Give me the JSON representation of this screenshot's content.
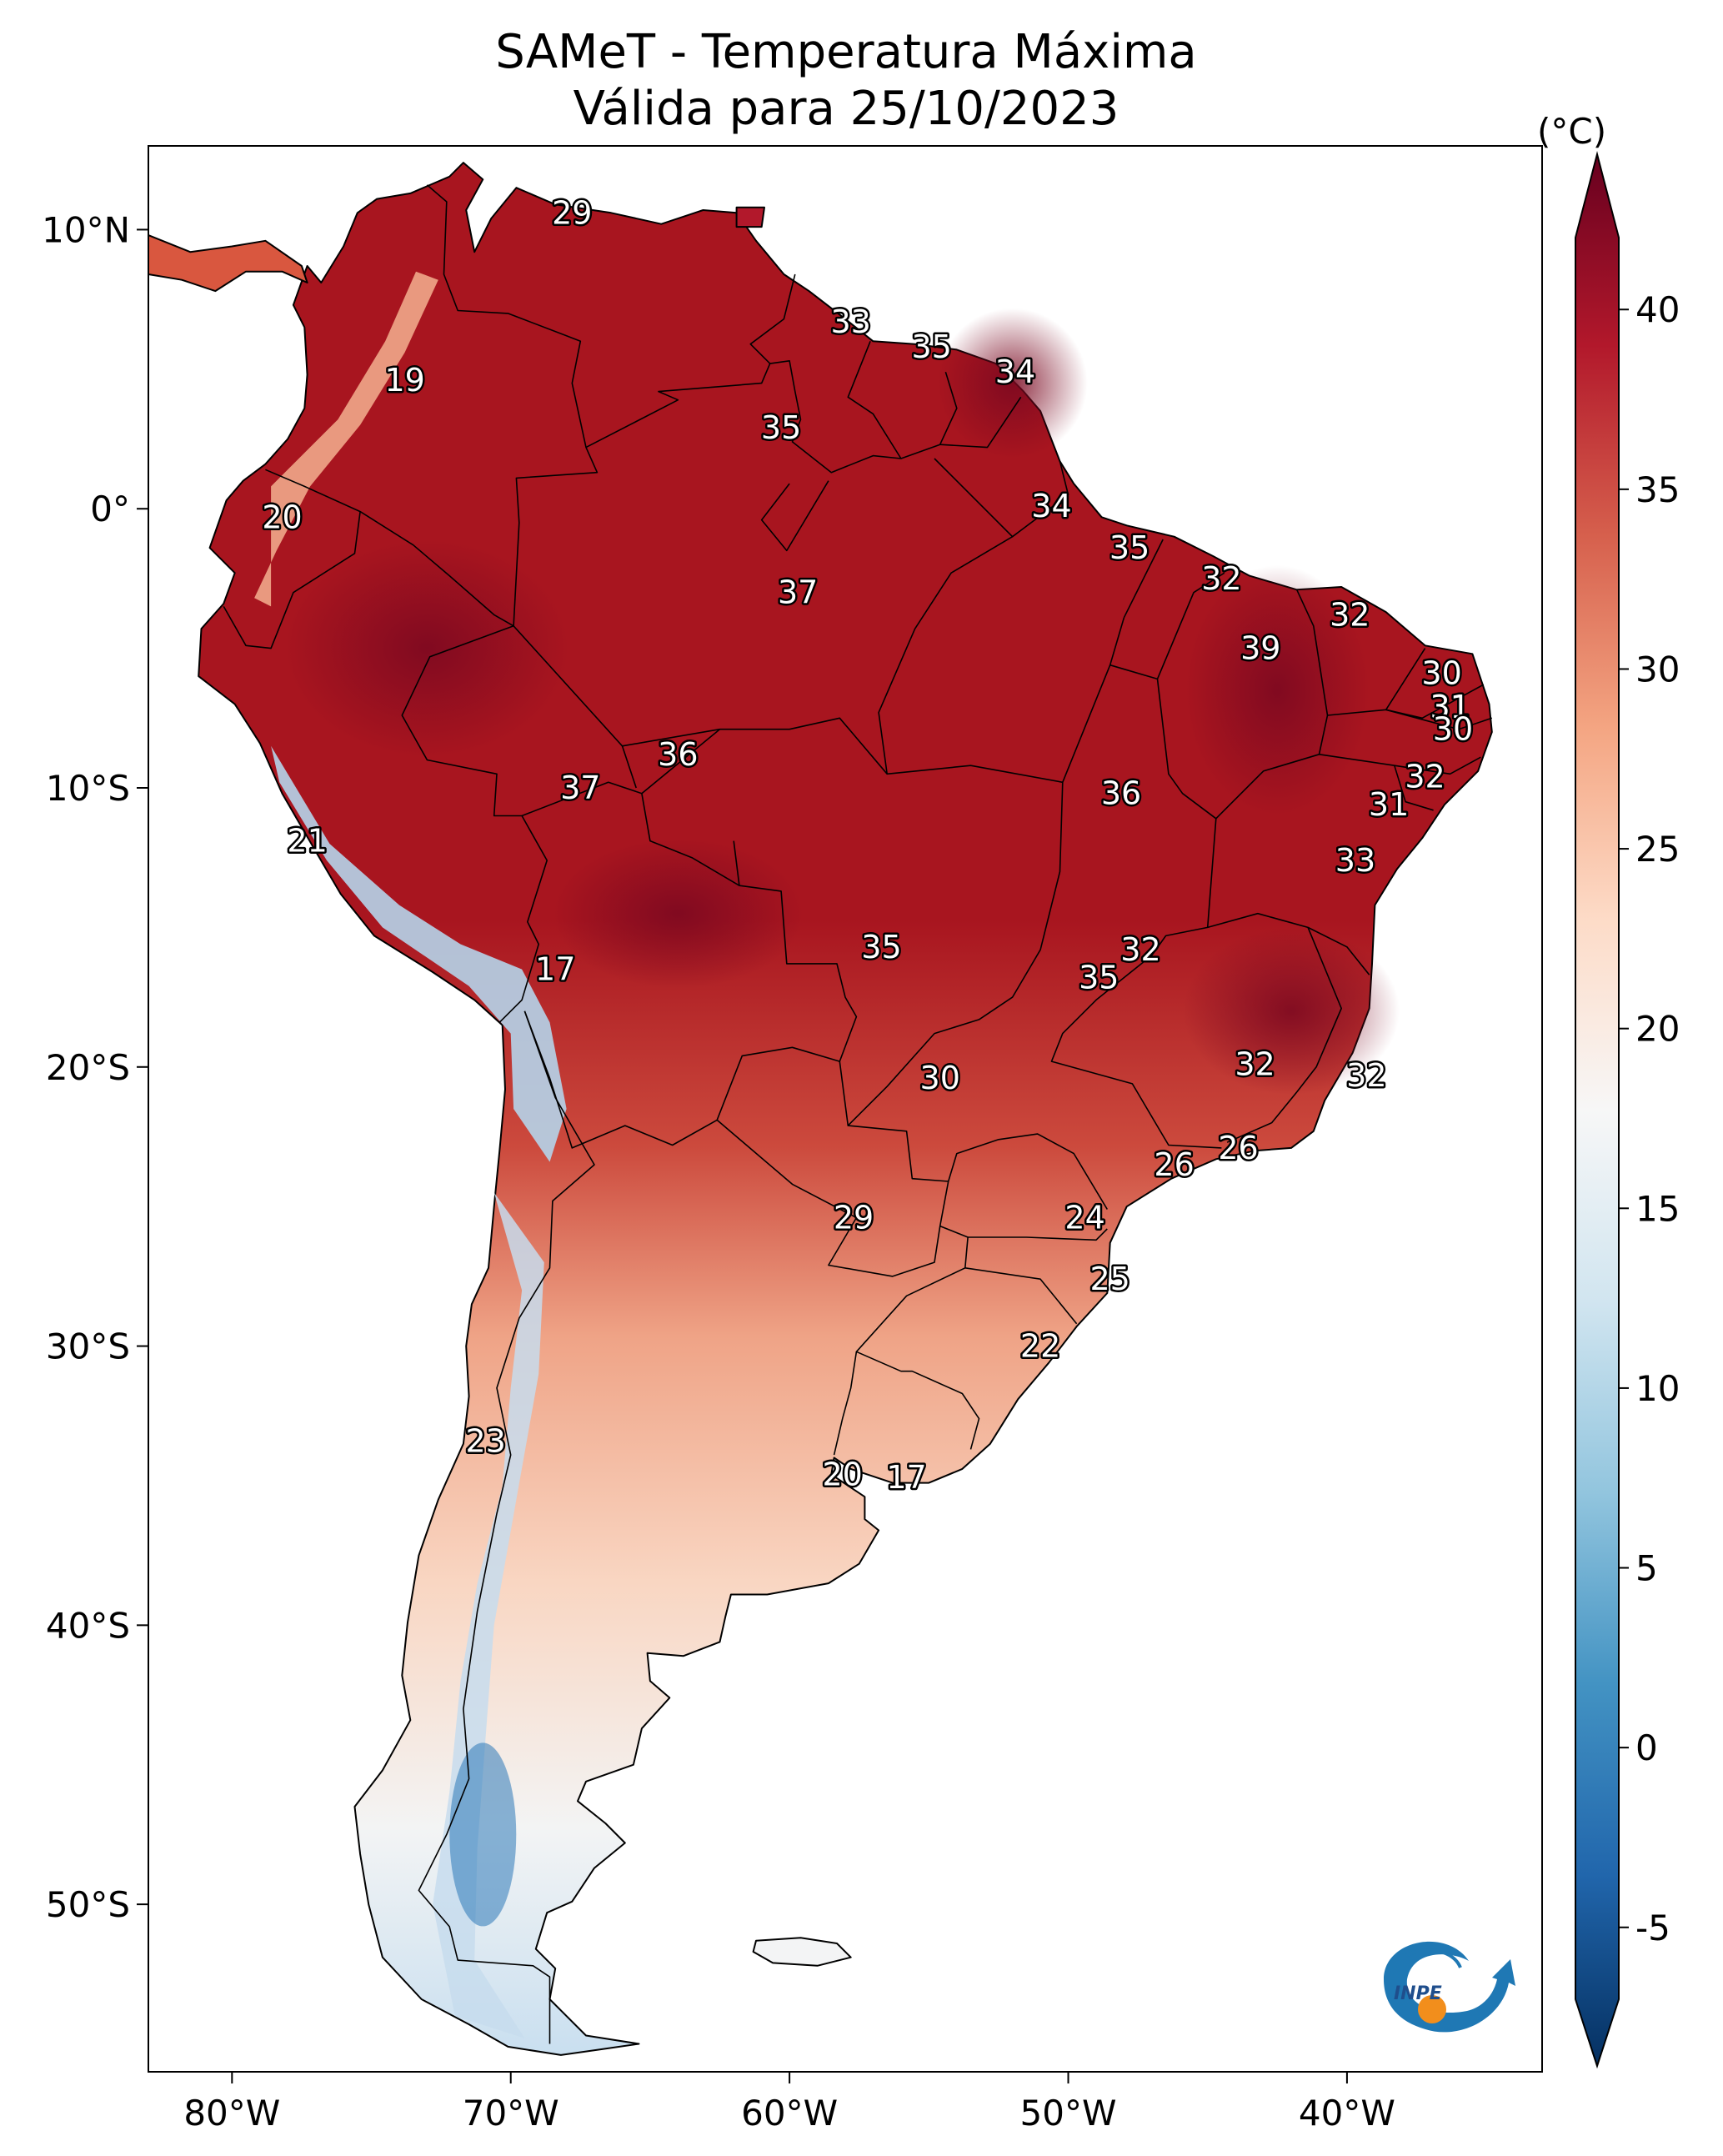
{
  "title": {
    "line1": "SAMeT - Temperatura Máxima",
    "line2": "Válida para 25/10/2023"
  },
  "axes": {
    "lon_ticks": [
      {
        "lon": -80,
        "label": "80°W"
      },
      {
        "lon": -70,
        "label": "70°W"
      },
      {
        "lon": -60,
        "label": "60°W"
      },
      {
        "lon": -50,
        "label": "50°W"
      },
      {
        "lon": -40,
        "label": "40°W"
      }
    ],
    "lat_ticks": [
      {
        "lat": 10,
        "label": "10°N"
      },
      {
        "lat": 0,
        "label": "0°"
      },
      {
        "lat": -10,
        "label": "10°S"
      },
      {
        "lat": -20,
        "label": "20°S"
      },
      {
        "lat": -30,
        "label": "30°S"
      },
      {
        "lat": -40,
        "label": "40°S"
      },
      {
        "lat": -50,
        "label": "50°S"
      }
    ],
    "lon_range": [
      -83,
      -33
    ],
    "lat_range": [
      -56,
      13
    ]
  },
  "colorbar": {
    "unit": "(°C)",
    "min": -7,
    "max": 42,
    "ticks": [
      {
        "value": 40,
        "label": "40"
      },
      {
        "value": 35,
        "label": "35"
      },
      {
        "value": 30,
        "label": "30"
      },
      {
        "value": 25,
        "label": "25"
      },
      {
        "value": 20,
        "label": "20"
      },
      {
        "value": 15,
        "label": "15"
      },
      {
        "value": 10,
        "label": "10"
      },
      {
        "value": 5,
        "label": "5"
      },
      {
        "value": 0,
        "label": "0"
      },
      {
        "value": -5,
        "label": "-5"
      }
    ],
    "colors": [
      "#053061",
      "#2166ac",
      "#4393c3",
      "#92c5de",
      "#d1e5f0",
      "#f7f7f7",
      "#fddbc7",
      "#f4a582",
      "#d6604d",
      "#b2182b",
      "#67001f"
    ]
  },
  "temperature_labels": [
    {
      "lon": -67.8,
      "lat": 10.6,
      "text": "29"
    },
    {
      "lon": -57.8,
      "lat": 6.7,
      "text": "33"
    },
    {
      "lon": -54.9,
      "lat": 5.8,
      "text": "35"
    },
    {
      "lon": -51.9,
      "lat": 4.9,
      "text": "34"
    },
    {
      "lon": -73.8,
      "lat": 4.6,
      "text": "19"
    },
    {
      "lon": -60.3,
      "lat": 2.9,
      "text": "35"
    },
    {
      "lon": -50.6,
      "lat": 0.1,
      "text": "34"
    },
    {
      "lon": -78.2,
      "lat": -0.3,
      "text": "20"
    },
    {
      "lon": -47.8,
      "lat": -1.4,
      "text": "35"
    },
    {
      "lon": -44.5,
      "lat": -2.5,
      "text": "32"
    },
    {
      "lon": -59.7,
      "lat": -3.0,
      "text": "37"
    },
    {
      "lon": -39.9,
      "lat": -3.8,
      "text": "32"
    },
    {
      "lon": -43.1,
      "lat": -5.0,
      "text": "39"
    },
    {
      "lon": -36.6,
      "lat": -5.9,
      "text": "30"
    },
    {
      "lon": -36.3,
      "lat": -7.1,
      "text": "31"
    },
    {
      "lon": -36.2,
      "lat": -7.9,
      "text": "30"
    },
    {
      "lon": -64.0,
      "lat": -8.8,
      "text": "36"
    },
    {
      "lon": -37.2,
      "lat": -9.6,
      "text": "32"
    },
    {
      "lon": -67.5,
      "lat": -10.0,
      "text": "37"
    },
    {
      "lon": -48.1,
      "lat": -10.2,
      "text": "36"
    },
    {
      "lon": -38.5,
      "lat": -10.6,
      "text": "31"
    },
    {
      "lon": -77.3,
      "lat": -11.9,
      "text": "21"
    },
    {
      "lon": -39.7,
      "lat": -12.6,
      "text": "33"
    },
    {
      "lon": -56.7,
      "lat": -15.7,
      "text": "35"
    },
    {
      "lon": -47.4,
      "lat": -15.8,
      "text": "32"
    },
    {
      "lon": -48.9,
      "lat": -16.8,
      "text": "35"
    },
    {
      "lon": -68.4,
      "lat": -16.5,
      "text": "17"
    },
    {
      "lon": -43.3,
      "lat": -19.9,
      "text": "32"
    },
    {
      "lon": -39.3,
      "lat": -20.3,
      "text": "32"
    },
    {
      "lon": -54.6,
      "lat": -20.4,
      "text": "30"
    },
    {
      "lon": -43.9,
      "lat": -22.9,
      "text": "26"
    },
    {
      "lon": -46.2,
      "lat": -23.5,
      "text": "26"
    },
    {
      "lon": -57.7,
      "lat": -25.4,
      "text": "29"
    },
    {
      "lon": -49.4,
      "lat": -25.4,
      "text": "24"
    },
    {
      "lon": -48.5,
      "lat": -27.6,
      "text": "25"
    },
    {
      "lon": -51.0,
      "lat": -30.0,
      "text": "22"
    },
    {
      "lon": -70.9,
      "lat": -33.4,
      "text": "23"
    },
    {
      "lon": -58.1,
      "lat": -34.6,
      "text": "20"
    },
    {
      "lon": -55.8,
      "lat": -34.7,
      "text": "17"
    }
  ]
}
